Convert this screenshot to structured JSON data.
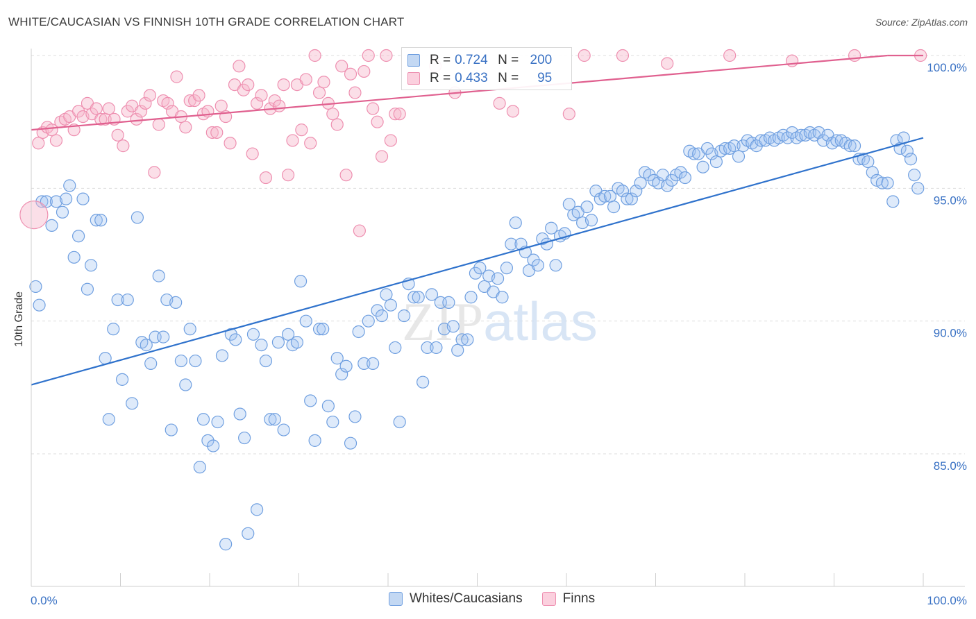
{
  "header": {
    "title": "WHITE/CAUCASIAN VS FINNISH 10TH GRADE CORRELATION CHART",
    "source": "Source: ZipAtlas.com"
  },
  "watermark": "ZIPatlas",
  "legend": {
    "rows": [
      {
        "r_label": "R =",
        "r_value": "0.724",
        "n_label": "N =",
        "n_value": "200",
        "color": "#a9c6ee"
      },
      {
        "r_label": "R =",
        "r_value": "0.433",
        "n_label": "N =",
        "n_value": "95",
        "color": "#f7b8cc"
      }
    ]
  },
  "bottom_legend": {
    "items": [
      {
        "label": "Whites/Caucasians",
        "color": "#a9c6ee"
      },
      {
        "label": "Finns",
        "color": "#f7b8cc"
      }
    ]
  },
  "chart_data": {
    "type": "scatter",
    "ylabel": "10th Grade",
    "xlim": [
      0,
      100
    ],
    "ylim": [
      80.0,
      101.0
    ],
    "x_tick_labels": [
      {
        "value": 0,
        "label": "0.0%"
      },
      {
        "value": 100,
        "label": "100.0%"
      }
    ],
    "y_tick_labels": [
      {
        "value": 100,
        "label": "100.0%"
      },
      {
        "value": 95,
        "label": "95.0%"
      },
      {
        "value": 90,
        "label": "90.0%"
      },
      {
        "value": 85,
        "label": "85.0%"
      }
    ],
    "series": [
      {
        "name": "Whites/Caucasians",
        "color": "#6f9fe0",
        "fill": "rgba(160,195,240,0.35)",
        "trend": {
          "x": [
            0,
            100
          ],
          "y": [
            87.6,
            96.9
          ],
          "color": "#2f72cc"
        },
        "points": [
          [
            0.5,
            91.3
          ],
          [
            0.9,
            90.6
          ],
          [
            1.2,
            94.5
          ],
          [
            1.7,
            94.5
          ],
          [
            2.3,
            93.6
          ],
          [
            2.8,
            94.5
          ],
          [
            3.5,
            94.1
          ],
          [
            3.9,
            94.6
          ],
          [
            4.3,
            95.1
          ],
          [
            4.8,
            92.4
          ],
          [
            5.3,
            93.2
          ],
          [
            5.8,
            94.6
          ],
          [
            6.3,
            91.2
          ],
          [
            6.7,
            92.1
          ],
          [
            7.3,
            93.8
          ],
          [
            7.8,
            93.8
          ],
          [
            8.3,
            88.6
          ],
          [
            8.7,
            86.3
          ],
          [
            9.2,
            89.7
          ],
          [
            9.7,
            90.8
          ],
          [
            10.2,
            87.8
          ],
          [
            10.8,
            90.8
          ],
          [
            11.3,
            86.9
          ],
          [
            11.9,
            93.9
          ],
          [
            12.4,
            89.2
          ],
          [
            12.9,
            89.1
          ],
          [
            13.4,
            88.4
          ],
          [
            13.9,
            89.4
          ],
          [
            14.3,
            91.7
          ],
          [
            14.8,
            89.4
          ],
          [
            15.2,
            90.8
          ],
          [
            15.7,
            85.9
          ],
          [
            16.2,
            90.7
          ],
          [
            16.8,
            88.5
          ],
          [
            17.3,
            87.6
          ],
          [
            17.8,
            89.7
          ],
          [
            18.4,
            88.5
          ],
          [
            18.9,
            84.5
          ],
          [
            19.3,
            86.3
          ],
          [
            19.8,
            85.5
          ],
          [
            20.4,
            85.3
          ],
          [
            20.9,
            86.2
          ],
          [
            21.4,
            88.7
          ],
          [
            21.8,
            81.6
          ],
          [
            22.4,
            89.5
          ],
          [
            22.9,
            89.3
          ],
          [
            23.4,
            86.5
          ],
          [
            23.9,
            85.6
          ],
          [
            24.3,
            82.0
          ],
          [
            24.9,
            89.5
          ],
          [
            25.3,
            82.9
          ],
          [
            25.8,
            89.1
          ],
          [
            26.3,
            88.5
          ],
          [
            26.8,
            86.3
          ],
          [
            27.3,
            86.3
          ],
          [
            27.7,
            89.2
          ],
          [
            28.3,
            85.9
          ],
          [
            28.8,
            89.5
          ],
          [
            29.3,
            89.1
          ],
          [
            29.8,
            89.2
          ],
          [
            30.2,
            91.5
          ],
          [
            30.8,
            90.0
          ],
          [
            31.3,
            87.0
          ],
          [
            31.8,
            85.5
          ],
          [
            32.3,
            89.7
          ],
          [
            32.7,
            89.7
          ],
          [
            33.3,
            86.8
          ],
          [
            33.8,
            86.2
          ],
          [
            34.3,
            88.6
          ],
          [
            34.8,
            88.0
          ],
          [
            35.3,
            88.3
          ],
          [
            35.8,
            85.4
          ],
          [
            36.3,
            86.4
          ],
          [
            36.7,
            89.6
          ],
          [
            37.3,
            88.4
          ],
          [
            37.8,
            90.0
          ],
          [
            38.3,
            88.4
          ],
          [
            38.8,
            90.4
          ],
          [
            39.3,
            90.2
          ],
          [
            39.8,
            91.0
          ],
          [
            40.3,
            90.6
          ],
          [
            40.8,
            89.0
          ],
          [
            41.3,
            86.2
          ],
          [
            41.8,
            90.2
          ],
          [
            42.3,
            91.4
          ],
          [
            42.9,
            90.9
          ],
          [
            43.4,
            90.9
          ],
          [
            43.9,
            87.7
          ],
          [
            44.4,
            89.0
          ],
          [
            44.9,
            91.0
          ],
          [
            45.4,
            89.0
          ],
          [
            45.9,
            90.7
          ],
          [
            46.3,
            89.7
          ],
          [
            46.8,
            90.7
          ],
          [
            47.3,
            89.8
          ],
          [
            47.8,
            88.9
          ],
          [
            48.3,
            89.3
          ],
          [
            48.9,
            89.3
          ],
          [
            49.3,
            90.9
          ],
          [
            49.8,
            91.8
          ],
          [
            50.3,
            92.0
          ],
          [
            50.8,
            91.3
          ],
          [
            51.3,
            91.7
          ],
          [
            51.8,
            91.1
          ],
          [
            52.3,
            91.6
          ],
          [
            52.8,
            90.9
          ],
          [
            53.3,
            92.0
          ],
          [
            53.8,
            92.9
          ],
          [
            54.3,
            93.7
          ],
          [
            54.9,
            92.9
          ],
          [
            55.4,
            92.6
          ],
          [
            55.8,
            91.9
          ],
          [
            56.3,
            92.3
          ],
          [
            56.8,
            92.1
          ],
          [
            57.3,
            93.1
          ],
          [
            57.8,
            92.9
          ],
          [
            58.3,
            93.5
          ],
          [
            58.8,
            92.1
          ],
          [
            59.3,
            93.2
          ],
          [
            59.8,
            93.3
          ],
          [
            60.3,
            94.4
          ],
          [
            60.8,
            94.0
          ],
          [
            61.3,
            94.1
          ],
          [
            61.8,
            93.7
          ],
          [
            62.3,
            94.3
          ],
          [
            62.8,
            93.8
          ],
          [
            63.3,
            94.9
          ],
          [
            63.8,
            94.6
          ],
          [
            64.3,
            94.7
          ],
          [
            64.9,
            94.7
          ],
          [
            65.3,
            94.3
          ],
          [
            65.8,
            95.0
          ],
          [
            66.3,
            94.9
          ],
          [
            66.8,
            94.6
          ],
          [
            67.3,
            94.6
          ],
          [
            67.8,
            94.9
          ],
          [
            68.3,
            95.2
          ],
          [
            68.8,
            95.6
          ],
          [
            69.3,
            95.5
          ],
          [
            69.8,
            95.3
          ],
          [
            70.3,
            95.2
          ],
          [
            70.8,
            95.5
          ],
          [
            71.3,
            95.1
          ],
          [
            71.8,
            95.3
          ],
          [
            72.3,
            95.5
          ],
          [
            72.8,
            95.6
          ],
          [
            73.3,
            95.4
          ],
          [
            73.8,
            96.4
          ],
          [
            74.3,
            96.3
          ],
          [
            74.8,
            96.3
          ],
          [
            75.3,
            95.8
          ],
          [
            75.8,
            96.5
          ],
          [
            76.3,
            96.3
          ],
          [
            76.8,
            96.0
          ],
          [
            77.3,
            96.4
          ],
          [
            77.8,
            96.5
          ],
          [
            78.3,
            96.5
          ],
          [
            78.8,
            96.6
          ],
          [
            79.3,
            96.2
          ],
          [
            79.8,
            96.6
          ],
          [
            80.3,
            96.8
          ],
          [
            80.8,
            96.7
          ],
          [
            81.3,
            96.6
          ],
          [
            81.8,
            96.8
          ],
          [
            82.3,
            96.8
          ],
          [
            82.8,
            96.9
          ],
          [
            83.3,
            96.8
          ],
          [
            83.8,
            96.9
          ],
          [
            84.3,
            97.0
          ],
          [
            84.8,
            96.9
          ],
          [
            85.3,
            97.1
          ],
          [
            85.8,
            96.9
          ],
          [
            86.3,
            97.0
          ],
          [
            86.8,
            97.0
          ],
          [
            87.3,
            97.1
          ],
          [
            87.8,
            97.0
          ],
          [
            88.3,
            97.1
          ],
          [
            88.8,
            96.8
          ],
          [
            89.3,
            97.0
          ],
          [
            89.8,
            96.7
          ],
          [
            90.3,
            96.8
          ],
          [
            90.8,
            96.8
          ],
          [
            91.3,
            96.7
          ],
          [
            91.8,
            96.6
          ],
          [
            92.3,
            96.6
          ],
          [
            92.8,
            96.1
          ],
          [
            93.3,
            96.1
          ],
          [
            93.8,
            96.0
          ],
          [
            94.3,
            95.6
          ],
          [
            94.8,
            95.3
          ],
          [
            95.4,
            95.2
          ],
          [
            96.0,
            95.2
          ],
          [
            96.6,
            94.5
          ],
          [
            97.0,
            96.8
          ],
          [
            97.4,
            96.5
          ],
          [
            97.8,
            96.9
          ],
          [
            98.2,
            96.4
          ],
          [
            98.6,
            96.1
          ],
          [
            99.0,
            95.5
          ],
          [
            99.4,
            95.0
          ]
        ]
      },
      {
        "name": "Finns",
        "color": "#ee8fb0",
        "fill": "rgba(247,184,204,0.45)",
        "trend": {
          "x": [
            0,
            96
          ],
          "y": [
            97.2,
            100.0
          ],
          "color": "#e0608f"
        },
        "points": [
          [
            0.3,
            94.0
          ],
          [
            0.8,
            96.7
          ],
          [
            1.3,
            97.1
          ],
          [
            1.8,
            97.3
          ],
          [
            2.3,
            97.2
          ],
          [
            2.8,
            96.8
          ],
          [
            3.3,
            97.5
          ],
          [
            3.8,
            97.6
          ],
          [
            4.3,
            97.7
          ],
          [
            4.8,
            97.2
          ],
          [
            5.3,
            97.9
          ],
          [
            5.8,
            97.7
          ],
          [
            6.3,
            98.2
          ],
          [
            6.8,
            97.8
          ],
          [
            7.3,
            98.0
          ],
          [
            7.8,
            97.6
          ],
          [
            8.3,
            97.6
          ],
          [
            8.7,
            98.0
          ],
          [
            9.3,
            97.6
          ],
          [
            9.7,
            97.0
          ],
          [
            10.3,
            96.6
          ],
          [
            10.8,
            97.9
          ],
          [
            11.3,
            98.1
          ],
          [
            11.8,
            97.6
          ],
          [
            12.3,
            97.9
          ],
          [
            12.8,
            98.2
          ],
          [
            13.3,
            98.5
          ],
          [
            13.8,
            95.6
          ],
          [
            14.3,
            97.4
          ],
          [
            14.8,
            98.3
          ],
          [
            15.3,
            98.2
          ],
          [
            15.8,
            97.9
          ],
          [
            16.3,
            99.2
          ],
          [
            16.8,
            97.7
          ],
          [
            17.3,
            97.3
          ],
          [
            17.8,
            98.3
          ],
          [
            18.3,
            98.3
          ],
          [
            18.8,
            98.5
          ],
          [
            19.3,
            97.8
          ],
          [
            19.8,
            97.9
          ],
          [
            20.3,
            97.1
          ],
          [
            20.8,
            97.1
          ],
          [
            21.3,
            98.1
          ],
          [
            21.8,
            97.7
          ],
          [
            22.3,
            96.7
          ],
          [
            22.8,
            98.9
          ],
          [
            23.3,
            99.6
          ],
          [
            23.8,
            98.7
          ],
          [
            24.3,
            98.9
          ],
          [
            24.8,
            96.3
          ],
          [
            25.3,
            98.2
          ],
          [
            25.8,
            98.5
          ],
          [
            26.3,
            95.4
          ],
          [
            26.8,
            98.0
          ],
          [
            27.3,
            98.3
          ],
          [
            27.8,
            98.1
          ],
          [
            28.3,
            98.9
          ],
          [
            28.8,
            95.5
          ],
          [
            29.3,
            96.8
          ],
          [
            29.8,
            98.9
          ],
          [
            30.3,
            97.2
          ],
          [
            30.8,
            99.1
          ],
          [
            31.3,
            96.7
          ],
          [
            31.8,
            100.0
          ],
          [
            32.3,
            98.6
          ],
          [
            32.8,
            99.0
          ],
          [
            33.3,
            98.2
          ],
          [
            33.8,
            97.8
          ],
          [
            34.3,
            97.4
          ],
          [
            34.8,
            99.6
          ],
          [
            35.3,
            95.5
          ],
          [
            35.8,
            99.3
          ],
          [
            36.3,
            98.6
          ],
          [
            36.8,
            93.4
          ],
          [
            37.3,
            99.4
          ],
          [
            37.8,
            100.0
          ],
          [
            38.3,
            98.0
          ],
          [
            38.8,
            97.5
          ],
          [
            39.3,
            96.2
          ],
          [
            39.8,
            100.0
          ],
          [
            40.3,
            96.8
          ],
          [
            40.8,
            97.8
          ],
          [
            41.3,
            97.8
          ],
          [
            45.3,
            99.6
          ],
          [
            47.5,
            98.6
          ],
          [
            52.5,
            98.2
          ],
          [
            54.0,
            97.9
          ],
          [
            60.3,
            97.8
          ],
          [
            62.0,
            100.0
          ],
          [
            66.3,
            100.0
          ],
          [
            71.3,
            99.7
          ],
          [
            78.3,
            100.0
          ],
          [
            85.3,
            99.8
          ],
          [
            92.3,
            100.0
          ],
          [
            99.7,
            100.0
          ]
        ]
      }
    ]
  }
}
